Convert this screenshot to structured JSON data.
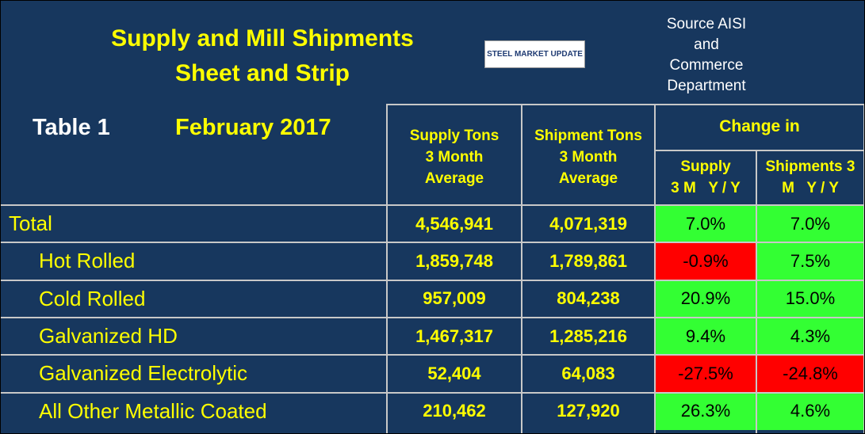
{
  "header": {
    "title_lines": [
      "Supply and Mill Shipments",
      "Sheet and Strip"
    ],
    "logo": "STEEL MARKET UPDATE",
    "source_lines": [
      "Source AISI",
      "and",
      "Commerce",
      "Department"
    ],
    "table_label": "Table 1",
    "period": "February 2017"
  },
  "table": {
    "columns": [
      [
        "Supply Tons",
        "3 Month",
        "Average"
      ],
      [
        "Shipment Tons",
        "3 Month",
        "Average"
      ]
    ],
    "change_header": "Change in",
    "change_columns": [
      [
        "Supply",
        "3 M   Y / Y"
      ],
      [
        "Shipments 3",
        "M   Y / Y"
      ]
    ],
    "rows": [
      [
        "Total",
        "4,546,941",
        "4,071,319",
        "7.0%",
        "7.0%"
      ],
      [
        "Hot Rolled",
        "1,859,748",
        "1,789,861",
        "-0.9%",
        "7.5%"
      ],
      [
        "Cold Rolled",
        "957,009",
        "804,238",
        "20.9%",
        "15.0%"
      ],
      [
        "Galvanized HD",
        "1,467,317",
        "1,285,216",
        "9.4%",
        "4.3%"
      ],
      [
        "Galvanized Electrolytic",
        "52,404",
        "64,083",
        "-27.5%",
        "-24.8%"
      ],
      [
        "All Other Metallic Coated",
        "210,462",
        "127,920",
        "26.3%",
        "4.6%"
      ]
    ],
    "cell_colors": [
      [
        "#33ff33",
        "#33ff33"
      ],
      [
        "#ff0000",
        "#33ff33"
      ],
      [
        "#33ff33",
        "#33ff33"
      ],
      [
        "#33ff33",
        "#33ff33"
      ],
      [
        "#ff0000",
        "#ff0000"
      ],
      [
        "#33ff33",
        "#33ff33"
      ]
    ]
  }
}
